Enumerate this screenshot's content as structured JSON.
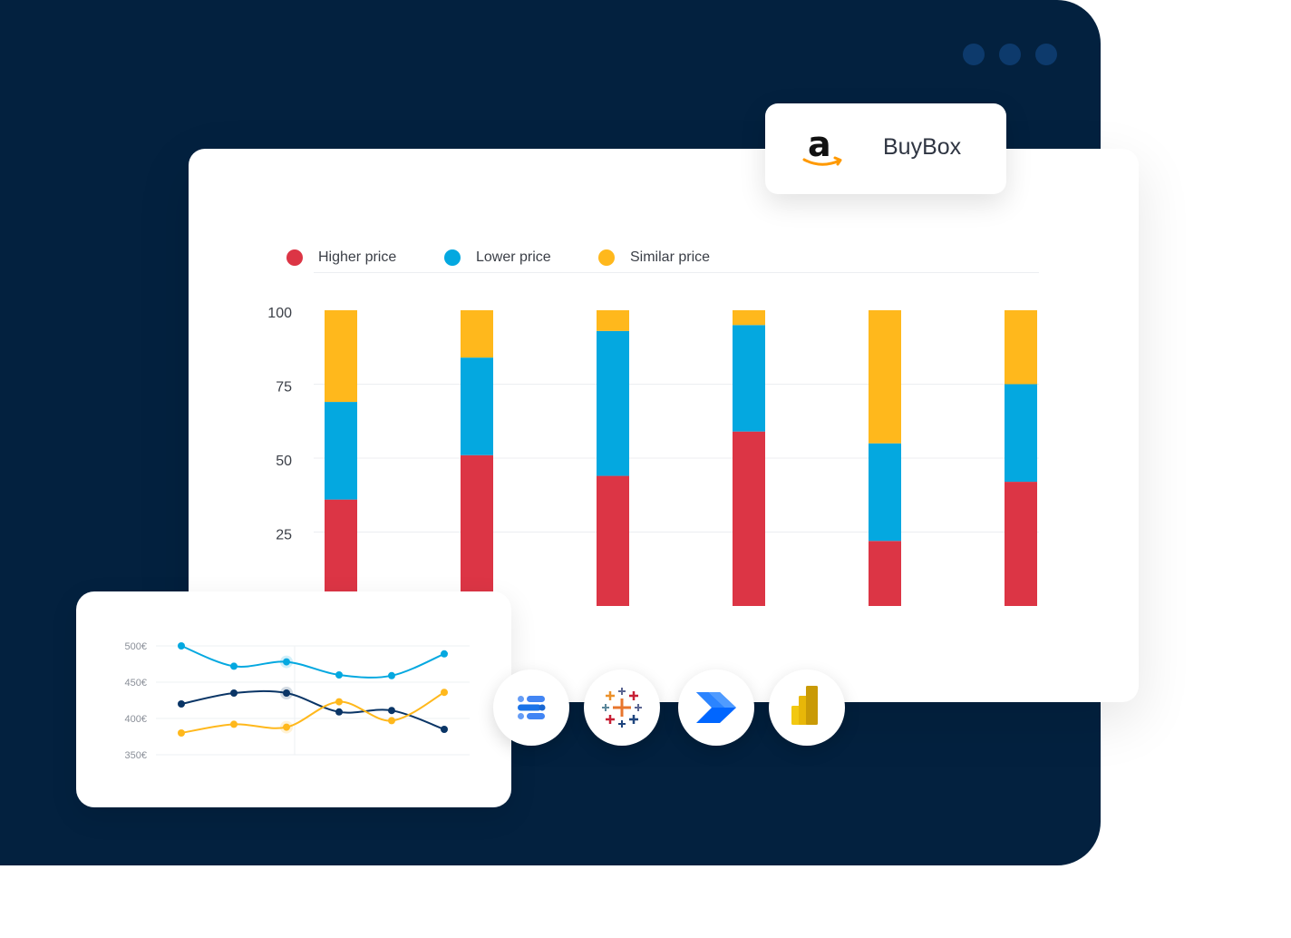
{
  "window": {
    "dots": 3,
    "bg_color": "#03213f",
    "dot_color": "#0d3a6c"
  },
  "badge": {
    "label": "BuyBox",
    "icon": "amazon-logo-icon"
  },
  "chart_data": [
    {
      "type": "bar",
      "stacked": true,
      "categories": [
        "",
        "",
        "",
        "",
        "",
        ""
      ],
      "yticks": [
        "100",
        "75",
        "50",
        "25"
      ],
      "ylim": [
        0,
        100
      ],
      "grid": true,
      "legend_position": "top-left",
      "series": [
        {
          "name": "Higher price",
          "color": "#dc3545",
          "values": [
            36,
            51,
            44,
            59,
            22,
            42
          ]
        },
        {
          "name": "Lower price",
          "color": "#04a8e0",
          "values": [
            33,
            33,
            49,
            36,
            33,
            33
          ]
        },
        {
          "name": "Similar price",
          "color": "#ffb81c",
          "values": [
            31,
            16,
            7,
            5,
            45,
            25
          ]
        }
      ]
    },
    {
      "type": "line",
      "x": [
        1,
        2,
        3,
        4,
        5,
        6
      ],
      "yticks": [
        "500€",
        "450€",
        "400€",
        "350€"
      ],
      "ylim": [
        350,
        500
      ],
      "grid": true,
      "series": [
        {
          "color": "#04a8e0",
          "values": [
            500,
            472,
            478,
            460,
            459,
            489
          ]
        },
        {
          "color": "#0a3566",
          "values": [
            420,
            435,
            435,
            409,
            411,
            385
          ]
        },
        {
          "color": "#ffb81c",
          "values": [
            380,
            392,
            388,
            423,
            397,
            436
          ]
        }
      ]
    }
  ],
  "integrations": [
    {
      "name": "google-data-studio-icon"
    },
    {
      "name": "tableau-icon"
    },
    {
      "name": "power-automate-icon"
    },
    {
      "name": "power-bi-icon"
    }
  ]
}
